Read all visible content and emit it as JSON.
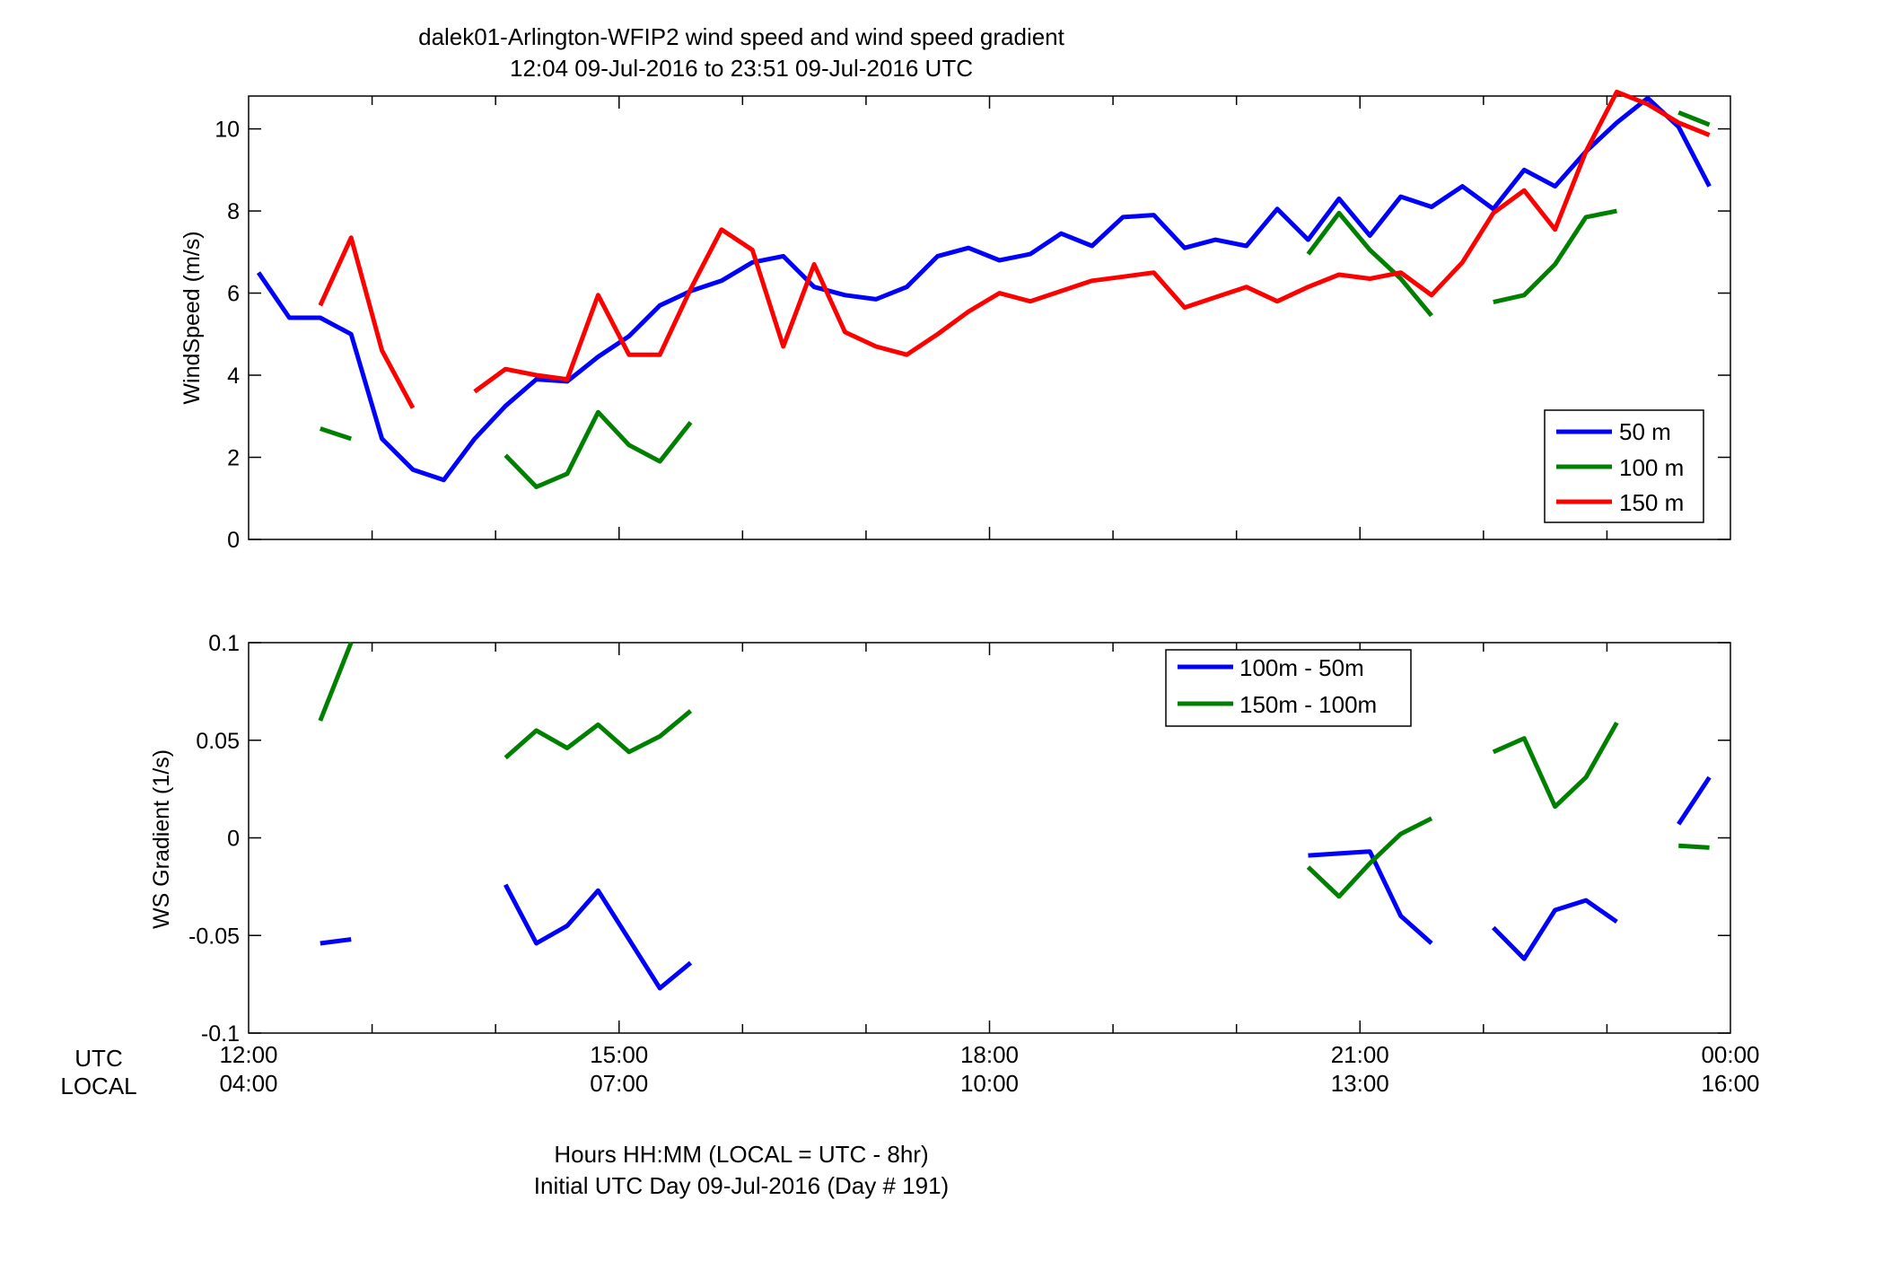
{
  "figure": {
    "title_line1": "dalek01-Arlington-WFIP2  wind speed and wind speed gradient",
    "title_line2": "12:04 09-Jul-2016 to 23:51 09-Jul-2016  UTC",
    "xaxis_caption_line1": "Hours HH:MM  (LOCAL = UTC - 8hr)",
    "xaxis_caption_line2": "Initial UTC Day 09-Jul-2016 (Day # 191)",
    "row_label_utc": "UTC",
    "row_label_local": "LOCAL",
    "time_ticks": [
      {
        "hour": 12,
        "utc": "12:00",
        "local": "04:00"
      },
      {
        "hour": 15,
        "utc": "15:00",
        "local": "07:00"
      },
      {
        "hour": 18,
        "utc": "18:00",
        "local": "10:00"
      },
      {
        "hour": 21,
        "utc": "21:00",
        "local": "13:00"
      },
      {
        "hour": 24,
        "utc": "00:00",
        "local": "16:00"
      }
    ]
  },
  "chart_data": [
    {
      "type": "line",
      "ylabel": "WindSpeed (m/s)",
      "xlim": [
        12,
        24
      ],
      "ylim": [
        0,
        10.8
      ],
      "yticks": [
        0,
        2,
        4,
        6,
        8,
        10
      ],
      "ytick_labels": [
        "0",
        "2",
        "4",
        "6",
        "8",
        "10"
      ],
      "x_unit": "hours UTC",
      "grid": false,
      "legend_position": "bottom-right",
      "series": [
        {
          "name": "50 m",
          "color": "#0000ff",
          "segments": [
            [
              [
                12.08,
                6.5
              ],
              [
                12.33,
                5.4
              ],
              [
                12.58,
                5.4
              ],
              [
                12.83,
                5.0
              ],
              [
                13.08,
                2.45
              ],
              [
                13.33,
                1.7
              ],
              [
                13.58,
                1.45
              ],
              [
                13.83,
                2.45
              ],
              [
                14.08,
                3.25
              ],
              [
                14.33,
                3.9
              ],
              [
                14.58,
                3.85
              ],
              [
                14.83,
                4.45
              ],
              [
                15.08,
                4.95
              ],
              [
                15.33,
                5.7
              ],
              [
                15.58,
                6.05
              ],
              [
                15.83,
                6.3
              ],
              [
                16.08,
                6.75
              ],
              [
                16.33,
                6.9
              ],
              [
                16.58,
                6.15
              ],
              [
                16.83,
                5.95
              ],
              [
                17.08,
                5.85
              ],
              [
                17.33,
                6.15
              ],
              [
                17.58,
                6.9
              ],
              [
                17.83,
                7.1
              ],
              [
                18.08,
                6.8
              ],
              [
                18.33,
                6.95
              ],
              [
                18.58,
                7.45
              ],
              [
                18.83,
                7.15
              ],
              [
                19.08,
                7.85
              ],
              [
                19.33,
                7.9
              ],
              [
                19.58,
                7.1
              ],
              [
                19.83,
                7.3
              ],
              [
                20.08,
                7.15
              ],
              [
                20.33,
                8.05
              ],
              [
                20.58,
                7.3
              ],
              [
                20.83,
                8.3
              ],
              [
                21.08,
                7.4
              ],
              [
                21.33,
                8.35
              ],
              [
                21.58,
                8.1
              ],
              [
                21.83,
                8.6
              ],
              [
                22.08,
                8.05
              ],
              [
                22.33,
                9.0
              ],
              [
                22.58,
                8.6
              ],
              [
                22.83,
                9.45
              ],
              [
                23.08,
                10.15
              ],
              [
                23.33,
                10.75
              ],
              [
                23.58,
                10.05
              ],
              [
                23.83,
                8.6
              ]
            ]
          ]
        },
        {
          "name": "100 m",
          "color": "#008000",
          "segments": [
            [
              [
                12.58,
                2.7
              ],
              [
                12.83,
                2.45
              ]
            ],
            [
              [
                14.08,
                2.05
              ],
              [
                14.33,
                1.28
              ],
              [
                14.58,
                1.6
              ],
              [
                14.83,
                3.1
              ],
              [
                15.08,
                2.3
              ],
              [
                15.33,
                1.9
              ],
              [
                15.58,
                2.85
              ]
            ],
            [
              [
                20.58,
                6.95
              ],
              [
                20.83,
                7.95
              ],
              [
                21.08,
                7.05
              ],
              [
                21.33,
                6.35
              ],
              [
                21.58,
                5.45
              ]
            ],
            [
              [
                22.08,
                5.78
              ],
              [
                22.33,
                5.95
              ],
              [
                22.58,
                6.7
              ],
              [
                22.83,
                7.85
              ],
              [
                23.08,
                8.0
              ]
            ],
            [
              [
                23.58,
                10.4
              ],
              [
                23.83,
                10.1
              ]
            ]
          ]
        },
        {
          "name": "150 m",
          "color": "#ff0000",
          "segments": [
            [
              [
                12.58,
                5.7
              ],
              [
                12.83,
                7.35
              ],
              [
                13.08,
                4.6
              ],
              [
                13.33,
                3.2
              ]
            ],
            [
              [
                13.83,
                3.6
              ],
              [
                14.08,
                4.15
              ],
              [
                14.33,
                4.0
              ],
              [
                14.58,
                3.9
              ],
              [
                14.83,
                5.95
              ],
              [
                15.08,
                4.5
              ],
              [
                15.33,
                4.5
              ],
              [
                15.58,
                6.1
              ],
              [
                15.83,
                7.55
              ],
              [
                16.08,
                7.05
              ],
              [
                16.33,
                4.7
              ],
              [
                16.58,
                6.7
              ],
              [
                16.83,
                5.05
              ],
              [
                17.08,
                4.7
              ],
              [
                17.33,
                4.5
              ],
              [
                17.58,
                5.0
              ],
              [
                17.83,
                5.55
              ],
              [
                18.08,
                6.0
              ],
              [
                18.33,
                5.8
              ],
              [
                18.58,
                6.05
              ],
              [
                18.83,
                6.3
              ],
              [
                19.08,
                6.4
              ],
              [
                19.33,
                6.5
              ],
              [
                19.58,
                5.65
              ],
              [
                19.83,
                5.9
              ],
              [
                20.08,
                6.15
              ],
              [
                20.33,
                5.8
              ],
              [
                20.58,
                6.15
              ],
              [
                20.83,
                6.45
              ],
              [
                21.08,
                6.35
              ],
              [
                21.33,
                6.5
              ],
              [
                21.58,
                5.95
              ],
              [
                21.83,
                6.75
              ],
              [
                22.08,
                7.95
              ],
              [
                22.33,
                8.5
              ],
              [
                22.58,
                7.55
              ],
              [
                22.83,
                9.45
              ],
              [
                23.08,
                10.9
              ],
              [
                23.33,
                10.6
              ],
              [
                23.58,
                10.15
              ],
              [
                23.83,
                9.85
              ]
            ]
          ]
        }
      ]
    },
    {
      "type": "line",
      "ylabel": "WS Gradient (1/s)",
      "xlim": [
        12,
        24
      ],
      "ylim": [
        -0.1,
        0.1
      ],
      "yticks": [
        -0.1,
        -0.05,
        0,
        0.05,
        0.1
      ],
      "ytick_labels": [
        "-0.1",
        "-0.05",
        "0",
        "0.05",
        "0.1"
      ],
      "x_unit": "hours UTC",
      "grid": false,
      "legend_position": "top-center",
      "series": [
        {
          "name": "100m - 50m",
          "color": "#0000ff",
          "segments": [
            [
              [
                12.58,
                -0.054
              ],
              [
                12.83,
                -0.052
              ]
            ],
            [
              [
                14.08,
                -0.024
              ],
              [
                14.33,
                -0.054
              ],
              [
                14.58,
                -0.045
              ],
              [
                14.83,
                -0.027
              ],
              [
                15.08,
                -0.052
              ],
              [
                15.33,
                -0.077
              ],
              [
                15.58,
                -0.064
              ]
            ],
            [
              [
                20.58,
                -0.009
              ],
              [
                20.83,
                -0.008
              ],
              [
                21.08,
                -0.007
              ],
              [
                21.33,
                -0.04
              ],
              [
                21.58,
                -0.054
              ]
            ],
            [
              [
                22.08,
                -0.046
              ],
              [
                22.33,
                -0.062
              ],
              [
                22.58,
                -0.037
              ],
              [
                22.83,
                -0.032
              ],
              [
                23.08,
                -0.043
              ]
            ],
            [
              [
                23.58,
                0.007
              ],
              [
                23.83,
                0.031
              ]
            ]
          ]
        },
        {
          "name": "150m - 100m",
          "color": "#008000",
          "segments": [
            [
              [
                12.58,
                0.06
              ],
              [
                12.83,
                0.1
              ]
            ],
            [
              [
                14.08,
                0.041
              ],
              [
                14.33,
                0.055
              ],
              [
                14.58,
                0.046
              ],
              [
                14.83,
                0.058
              ],
              [
                15.08,
                0.044
              ],
              [
                15.33,
                0.052
              ],
              [
                15.58,
                0.065
              ]
            ],
            [
              [
                20.58,
                -0.015
              ],
              [
                20.83,
                -0.03
              ],
              [
                21.08,
                -0.013
              ],
              [
                21.33,
                0.002
              ],
              [
                21.58,
                0.01
              ]
            ],
            [
              [
                22.08,
                0.044
              ],
              [
                22.33,
                0.051
              ],
              [
                22.58,
                0.016
              ],
              [
                22.83,
                0.031
              ],
              [
                23.08,
                0.059
              ]
            ],
            [
              [
                23.58,
                -0.004
              ],
              [
                23.83,
                -0.005
              ]
            ]
          ]
        }
      ]
    }
  ]
}
